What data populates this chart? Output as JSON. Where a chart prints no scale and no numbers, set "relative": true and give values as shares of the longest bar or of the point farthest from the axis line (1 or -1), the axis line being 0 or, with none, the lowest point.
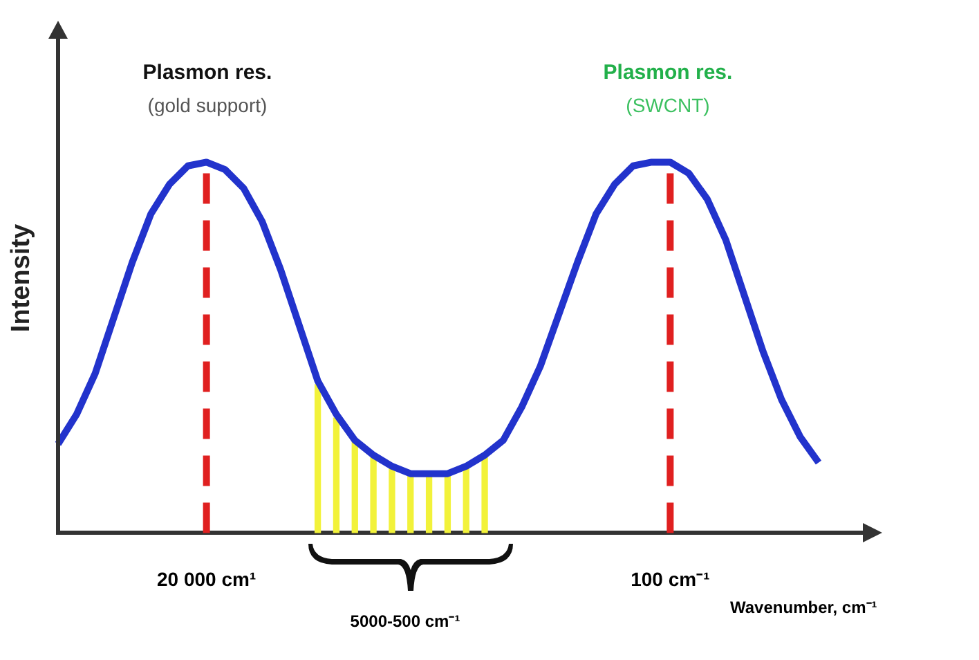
{
  "chart_data": {
    "type": "line",
    "relative": true,
    "xlabel": "Wavenumber, cm⁻¹",
    "ylabel": "Intensity",
    "categories": [
      null,
      null,
      null,
      null,
      null,
      null,
      null,
      null,
      "20 000 cm¹",
      null,
      null,
      null,
      null,
      null,
      null,
      null,
      null,
      null,
      null,
      null,
      null,
      null,
      null,
      null,
      null,
      null,
      null,
      null,
      null,
      null,
      null,
      null,
      null,
      "100 cm⁻¹",
      null,
      null,
      null,
      null,
      null,
      null,
      null,
      null
    ],
    "series": [
      {
        "color": "#2233cc",
        "values": [
          0.24,
          0.32,
          0.43,
          0.58,
          0.73,
          0.86,
          0.94,
          0.99,
          1.0,
          0.98,
          0.93,
          0.84,
          0.71,
          0.56,
          0.41,
          0.32,
          0.25,
          0.21,
          0.18,
          0.16,
          0.16,
          0.16,
          0.18,
          0.21,
          0.25,
          0.34,
          0.45,
          0.59,
          0.73,
          0.86,
          0.94,
          0.99,
          1.0,
          1.0,
          0.97,
          0.9,
          0.79,
          0.64,
          0.49,
          0.36,
          0.26,
          0.19
        ]
      },
      {
        "type": "bar",
        "color": "#f2f23a",
        "values": [
          null,
          null,
          null,
          null,
          null,
          null,
          null,
          null,
          null,
          null,
          null,
          null,
          null,
          null,
          0.4,
          0.31,
          0.25,
          0.21,
          0.18,
          0.16,
          0.16,
          0.16,
          0.18,
          0.21,
          null,
          null,
          null,
          null,
          null,
          null,
          null,
          null,
          null,
          null,
          null,
          null,
          null,
          null,
          null,
          null,
          null,
          null
        ]
      }
    ],
    "ref_lines": [
      {
        "axis": "x",
        "value": "20 000 cm¹",
        "color": "#e02020",
        "line_style": "dashed"
      },
      {
        "axis": "x",
        "value": "100 cm⁻¹",
        "color": "#e02020",
        "line_style": "dashed"
      }
    ],
    "annotations": [
      "Plasmon res.",
      "(gold support)",
      "Plasmon res.",
      "(SWCNT)",
      "5000-500 cm⁻¹"
    ]
  }
}
